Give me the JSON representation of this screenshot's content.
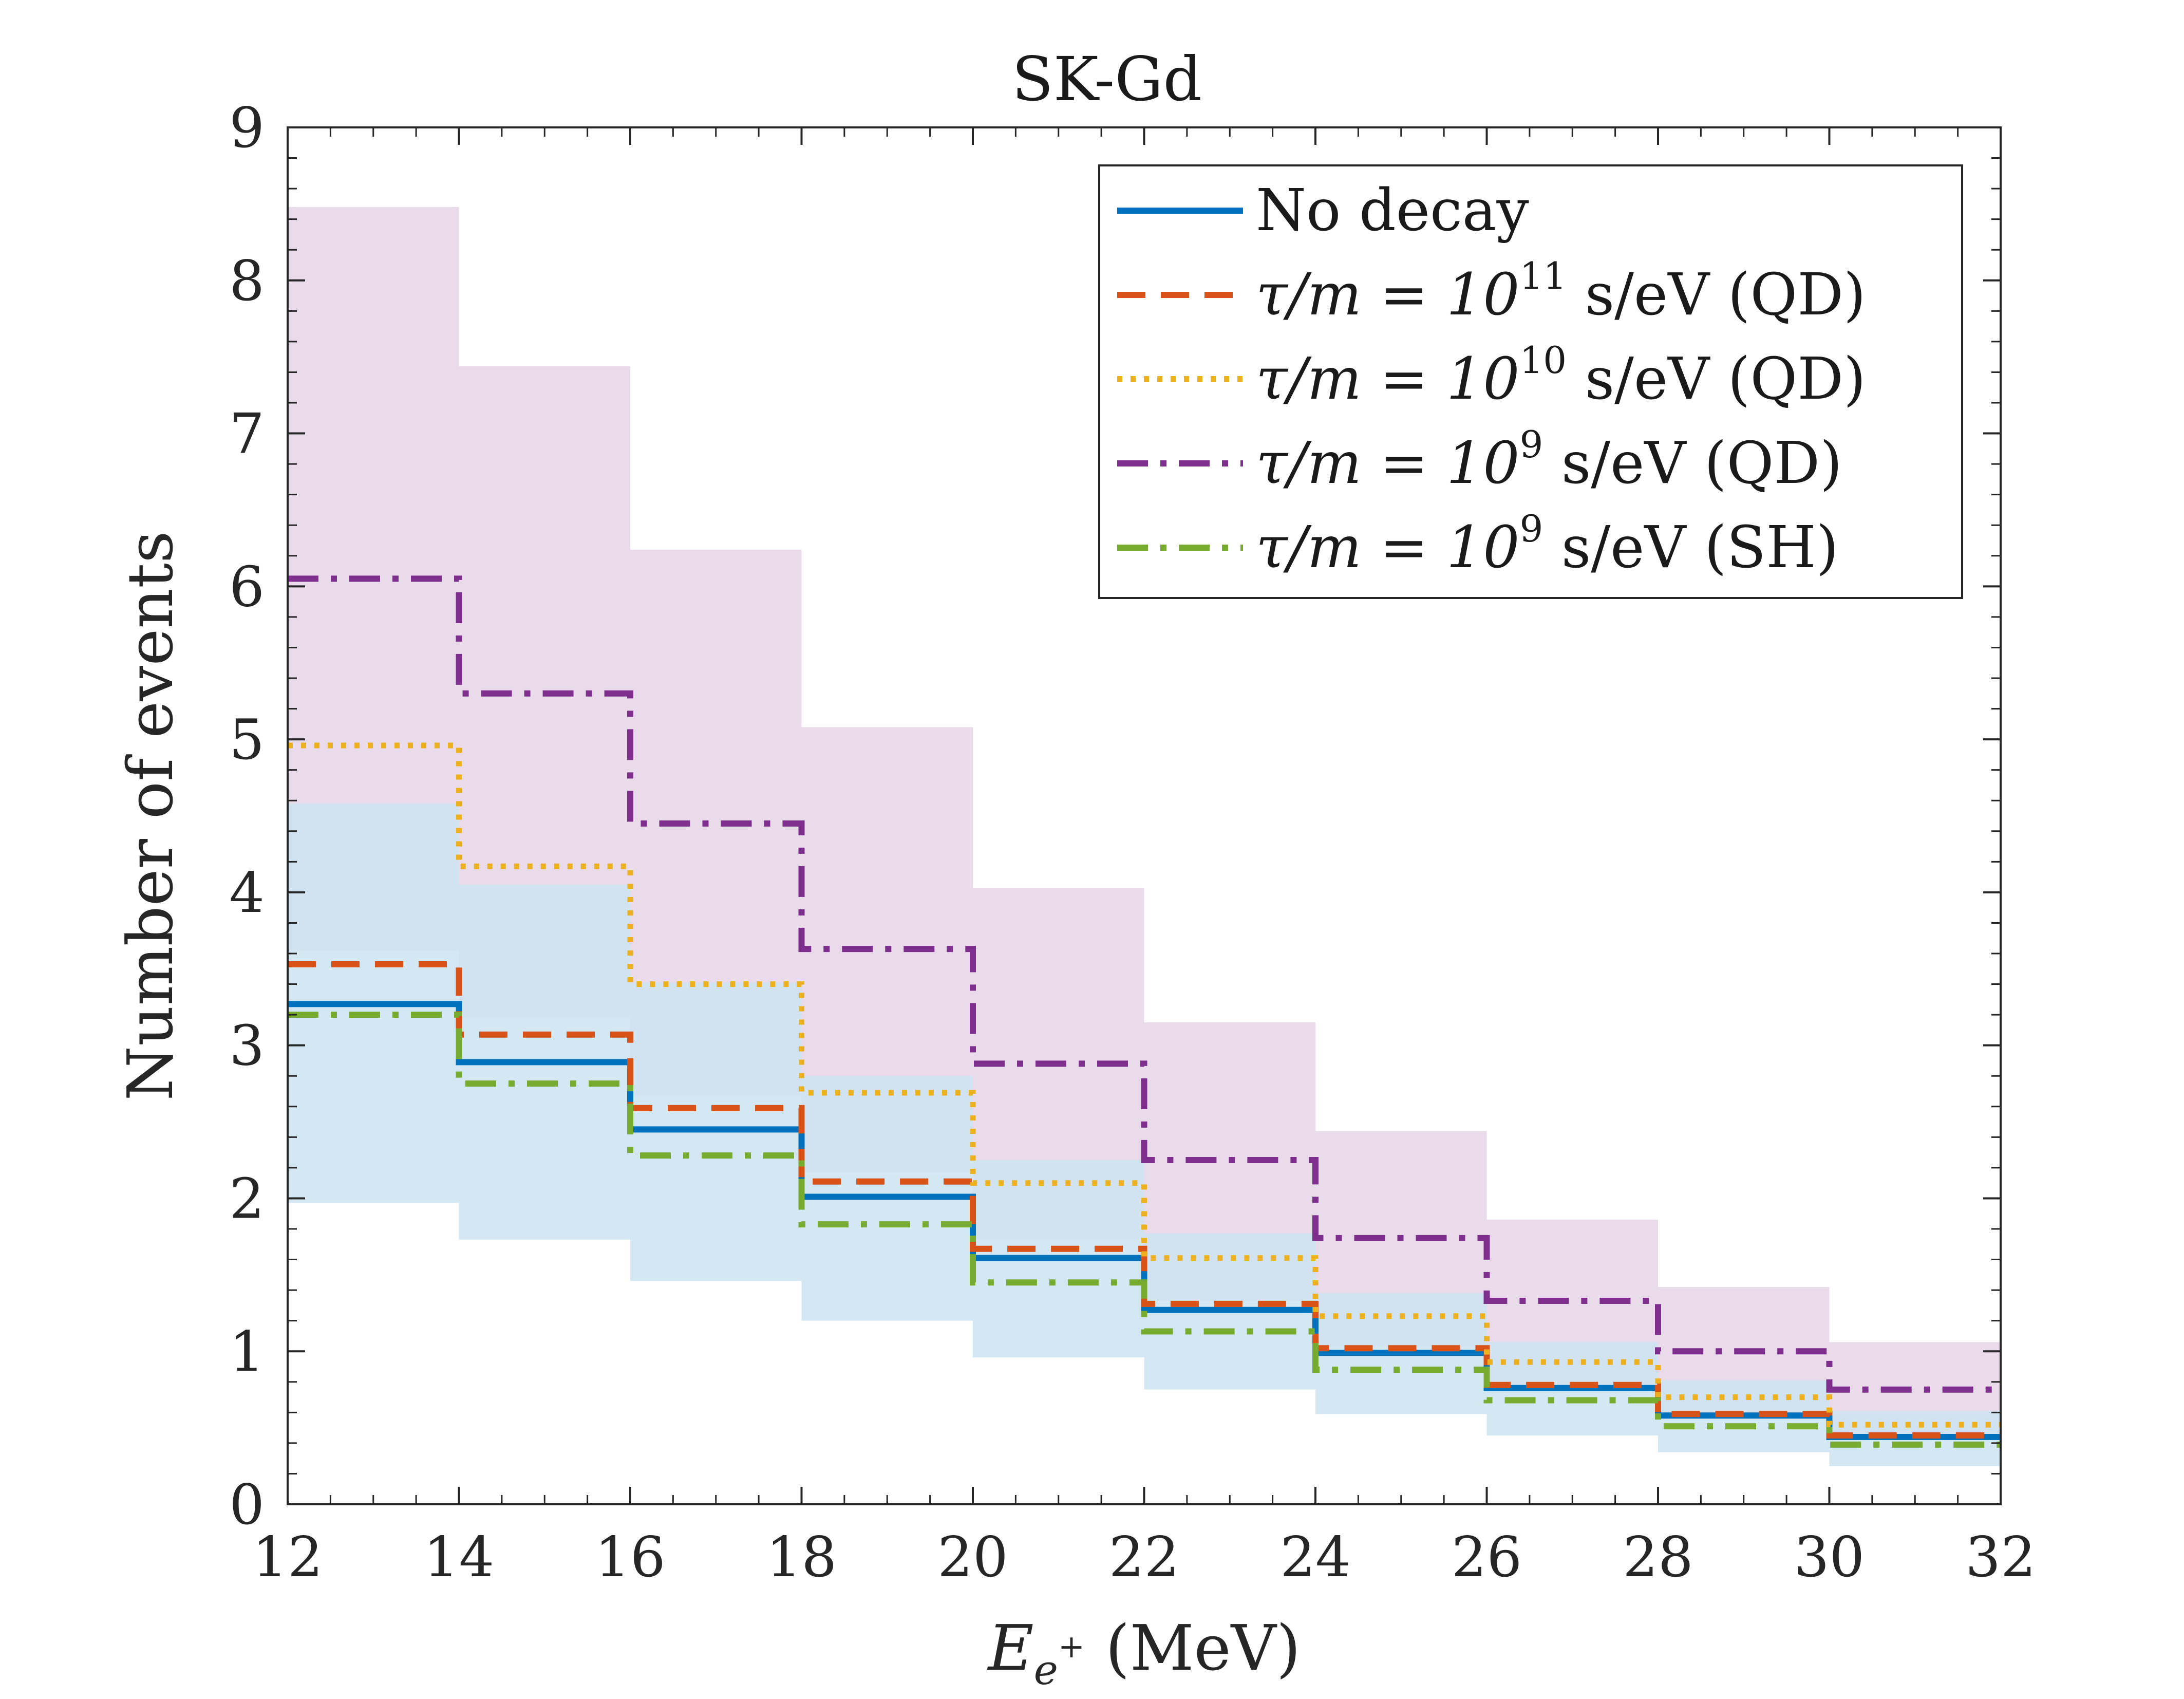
{
  "chart_data": {
    "type": "line",
    "style": "step",
    "title": "SK-Gd",
    "xlabel_symbol": "E",
    "xlabel_sub": "e",
    "xlabel_sup": "+",
    "xlabel_unit": "(MeV)",
    "ylabel": "Number of events",
    "xlim": [
      12,
      32
    ],
    "ylim": [
      0,
      9
    ],
    "xticks": [
      12,
      14,
      16,
      18,
      20,
      22,
      24,
      26,
      28,
      30,
      32
    ],
    "yticks": [
      0,
      1,
      2,
      3,
      4,
      5,
      6,
      7,
      8,
      9
    ],
    "grid": false,
    "legend_position": "top-right",
    "bin_edges": [
      12,
      14,
      16,
      18,
      20,
      22,
      24,
      26,
      28,
      30,
      32
    ],
    "bands": [
      {
        "name": "band-qd-1e9",
        "color": "#e6d5e8",
        "lower": [
          3.62,
          3.18,
          2.67,
          2.17,
          1.73,
          1.33,
          1.03,
          0.78,
          0.6,
          0.45
        ],
        "upper": [
          8.48,
          7.44,
          6.24,
          5.08,
          4.03,
          3.15,
          2.44,
          1.86,
          1.42,
          1.06
        ]
      },
      {
        "name": "band-no-decay",
        "color": "#cce4f2",
        "lower": [
          1.97,
          1.73,
          1.46,
          1.2,
          0.96,
          0.75,
          0.59,
          0.45,
          0.34,
          0.25
        ],
        "upper": [
          4.58,
          4.05,
          3.41,
          2.8,
          2.25,
          1.77,
          1.38,
          1.06,
          0.81,
          0.61
        ]
      }
    ],
    "series": [
      {
        "name": "No decay",
        "color": "#0072bd",
        "dash": "solid",
        "values": [
          3.27,
          2.89,
          2.45,
          2.01,
          1.61,
          1.27,
          0.99,
          0.76,
          0.58,
          0.44
        ]
      },
      {
        "name": "τ/m = 10^11 s/eV (QD)",
        "color": "#d95319",
        "dash": "dashed",
        "values": [
          3.53,
          3.07,
          2.59,
          2.11,
          1.67,
          1.31,
          1.02,
          0.78,
          0.59,
          0.45
        ]
      },
      {
        "name": "τ/m = 10^10 s/eV (QD)",
        "color": "#edb120",
        "dash": "dotted",
        "values": [
          4.96,
          4.17,
          3.4,
          2.69,
          2.1,
          1.61,
          1.23,
          0.93,
          0.7,
          0.52
        ]
      },
      {
        "name": "τ/m = 10^9 s/eV (QD)",
        "color": "#7e2f8e",
        "dash": "dashdot",
        "values": [
          6.05,
          5.3,
          4.45,
          3.63,
          2.88,
          2.25,
          1.74,
          1.33,
          1.0,
          0.75
        ]
      },
      {
        "name": "τ/m = 10^9 s/eV (SH)",
        "color": "#77ac30",
        "dash": "dashdot",
        "values": [
          3.2,
          2.75,
          2.28,
          1.83,
          1.45,
          1.13,
          0.88,
          0.68,
          0.51,
          0.39
        ]
      }
    ],
    "legend": [
      {
        "label": "No decay",
        "symbol_lhs": "",
        "exponent": "",
        "suffix": ""
      },
      {
        "label": "",
        "symbol_lhs": "τ/m = 10",
        "exponent": "11",
        "suffix": " s/eV (QD)"
      },
      {
        "label": "",
        "symbol_lhs": "τ/m = 10",
        "exponent": "10",
        "suffix": " s/eV (QD)"
      },
      {
        "label": "",
        "symbol_lhs": "τ/m = 10",
        "exponent": "9",
        "suffix": " s/eV (QD)"
      },
      {
        "label": "",
        "symbol_lhs": "τ/m = 10",
        "exponent": "9",
        "suffix": " s/eV (SH)"
      }
    ]
  }
}
